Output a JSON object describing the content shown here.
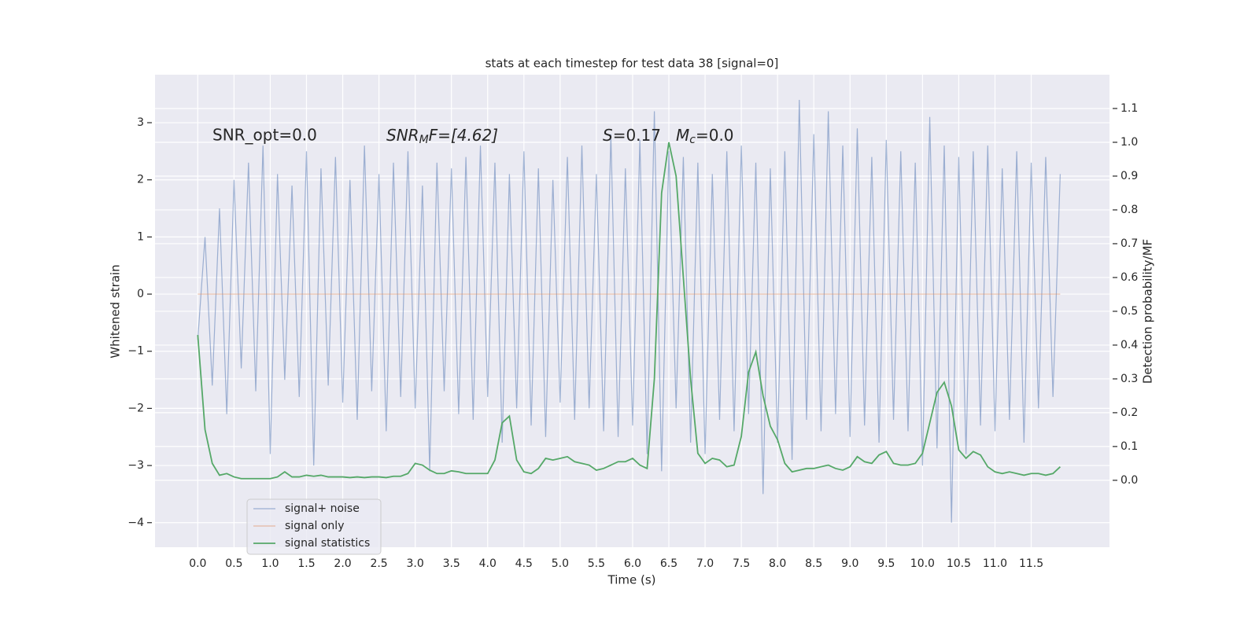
{
  "chart_data": {
    "type": "line",
    "title": "stats at each timestep for test data 38 [signal=0]",
    "xlabel": "Time (s)",
    "ylabel": "Whitened strain",
    "y2label": "Detection probability/MF",
    "annotations": [
      {
        "text": "SNR_opt=0.0"
      },
      {
        "base": "SNR",
        "sub": "M",
        "rest": "F=[4.62]"
      },
      {
        "base": "S",
        "rest": "=0.17"
      },
      {
        "base": "M",
        "sub": "c",
        "rest": "=0.0"
      }
    ],
    "xlim": [
      -0.59,
      12.58
    ],
    "ylim": [
      -4.43,
      3.84
    ],
    "y2lim": [
      -0.198,
      1.2
    ],
    "xticks": [
      {
        "value": 0,
        "label": "0.0"
      },
      0.5,
      {
        "value": 1,
        "label": "1.0"
      },
      1.5,
      {
        "value": 2,
        "label": "2.0"
      },
      2.5,
      {
        "value": 3,
        "label": "3.0"
      },
      3.5,
      {
        "value": 4,
        "label": "4.0"
      },
      4.5,
      {
        "value": 5,
        "label": "5.0"
      },
      5.5,
      {
        "value": 6,
        "label": "6.0"
      },
      6.5,
      {
        "value": 7,
        "label": "7.0"
      },
      7.5,
      {
        "value": 8,
        "label": "8.0"
      },
      8.5,
      {
        "value": 9,
        "label": "9.0"
      },
      9.5,
      {
        "value": 10,
        "label": "10.0"
      },
      10.5,
      {
        "value": 11,
        "label": "11.0"
      },
      11.5
    ],
    "yticks": [
      {
        "value": -4,
        "label": "−4"
      },
      {
        "value": -3,
        "label": "−3"
      },
      {
        "value": -2,
        "label": "−2"
      },
      {
        "value": -1,
        "label": "−1"
      },
      0,
      1,
      2,
      3
    ],
    "y2ticks": [
      {
        "value": 0,
        "label": "0.0"
      },
      0.1,
      0.2,
      0.3,
      0.4,
      0.5,
      0.6,
      0.7,
      0.8,
      0.9,
      {
        "value": 1,
        "label": "1.0"
      },
      1.1
    ],
    "grid": true,
    "legend": "lower left",
    "x": [
      0.0,
      0.1,
      0.2,
      0.3,
      0.4,
      0.5,
      0.6,
      0.7,
      0.8,
      0.9,
      1.0,
      1.1,
      1.2,
      1.3,
      1.4,
      1.5,
      1.6,
      1.7,
      1.8,
      1.9,
      2.0,
      2.1,
      2.2,
      2.3,
      2.4,
      2.5,
      2.6,
      2.7,
      2.8,
      2.9,
      3.0,
      3.1,
      3.2,
      3.3,
      3.4,
      3.5,
      3.6,
      3.7,
      3.8,
      3.9,
      4.0,
      4.1,
      4.2,
      4.3,
      4.4,
      4.5,
      4.6,
      4.7,
      4.8,
      4.9,
      5.0,
      5.1,
      5.2,
      5.3,
      5.4,
      5.5,
      5.6,
      5.7,
      5.8,
      5.9,
      6.0,
      6.1,
      6.2,
      6.3,
      6.4,
      6.5,
      6.6,
      6.7,
      6.8,
      6.9,
      7.0,
      7.1,
      7.2,
      7.3,
      7.4,
      7.5,
      7.6,
      7.7,
      7.8,
      7.9,
      8.0,
      8.1,
      8.2,
      8.3,
      8.4,
      8.5,
      8.6,
      8.7,
      8.8,
      8.9,
      9.0,
      9.1,
      9.2,
      9.3,
      9.4,
      9.5,
      9.6,
      9.7,
      9.8,
      9.9,
      10.0,
      10.1,
      10.2,
      10.3,
      10.4,
      10.5,
      10.6,
      10.7,
      10.8,
      10.9,
      11.0,
      11.1,
      11.2,
      11.3,
      11.4,
      11.5,
      11.6,
      11.7,
      11.8,
      11.9
    ],
    "series": [
      {
        "name": "signal+ noise",
        "color": "#4c72b0",
        "values": [
          -0.8,
          1.0,
          -1.6,
          1.5,
          -2.1,
          2.0,
          -1.3,
          2.3,
          -1.7,
          2.6,
          -2.8,
          2.1,
          -1.5,
          1.9,
          -1.8,
          2.5,
          -3.0,
          2.2,
          -1.6,
          2.4,
          -1.9,
          2.0,
          -2.2,
          2.6,
          -1.7,
          2.1,
          -2.4,
          2.3,
          -1.8,
          2.5,
          -2.0,
          1.9,
          -3.1,
          2.3,
          -1.7,
          2.2,
          -2.1,
          2.4,
          -2.2,
          2.6,
          -1.8,
          2.3,
          -2.6,
          2.1,
          -2.0,
          2.5,
          -2.3,
          2.2,
          -2.5,
          2.0,
          -1.9,
          2.4,
          -2.2,
          2.6,
          -2.0,
          2.1,
          -2.4,
          2.8,
          -2.5,
          2.2,
          -2.3,
          2.7,
          -2.8,
          3.2,
          -3.1,
          2.5,
          -2.0,
          2.4,
          -2.6,
          2.3,
          -2.8,
          2.1,
          -2.2,
          2.5,
          -2.4,
          2.6,
          -2.1,
          2.3,
          -3.5,
          2.2,
          -2.6,
          2.5,
          -2.9,
          3.4,
          -2.2,
          2.8,
          -2.4,
          3.2,
          -2.1,
          2.6,
          -2.5,
          2.9,
          -2.3,
          2.4,
          -2.6,
          2.7,
          -2.2,
          2.5,
          -2.4,
          2.3,
          -3.0,
          3.1,
          -2.7,
          2.6,
          -4.0,
          2.4,
          -2.8,
          2.5,
          -2.3,
          2.6,
          -2.4,
          2.2,
          -2.2,
          2.5,
          -2.6,
          2.3,
          -2.0,
          2.4,
          -1.8,
          2.1
        ]
      },
      {
        "name": "signal only",
        "color": "#dd8452",
        "values": [
          0,
          0,
          0,
          0,
          0,
          0,
          0,
          0,
          0,
          0,
          0,
          0,
          0,
          0,
          0,
          0,
          0,
          0,
          0,
          0,
          0,
          0,
          0,
          0,
          0,
          0,
          0,
          0,
          0,
          0,
          0,
          0,
          0,
          0,
          0,
          0,
          0,
          0,
          0,
          0,
          0,
          0,
          0,
          0,
          0,
          0,
          0,
          0,
          0,
          0,
          0,
          0,
          0,
          0,
          0,
          0,
          0,
          0,
          0,
          0,
          0,
          0,
          0,
          0,
          0,
          0,
          0,
          0,
          0,
          0,
          0,
          0,
          0,
          0,
          0,
          0,
          0,
          0,
          0,
          0,
          0,
          0,
          0,
          0,
          0,
          0,
          0,
          0,
          0,
          0,
          0,
          0,
          0,
          0,
          0,
          0,
          0,
          0,
          0,
          0,
          0,
          0,
          0,
          0,
          0,
          0,
          0,
          0,
          0,
          0,
          0,
          0,
          0,
          0,
          0,
          0,
          0,
          0,
          0,
          0
        ]
      },
      {
        "name": "signal statistics",
        "color": "#55a868",
        "axis": "y2",
        "values": [
          0.43,
          0.15,
          0.05,
          0.015,
          0.02,
          0.01,
          0.005,
          0.005,
          0.005,
          0.005,
          0.005,
          0.01,
          0.025,
          0.01,
          0.01,
          0.015,
          0.012,
          0.015,
          0.01,
          0.01,
          0.01,
          0.008,
          0.01,
          0.008,
          0.01,
          0.01,
          0.008,
          0.012,
          0.012,
          0.02,
          0.05,
          0.045,
          0.03,
          0.02,
          0.02,
          0.028,
          0.025,
          0.02,
          0.02,
          0.02,
          0.02,
          0.06,
          0.17,
          0.19,
          0.06,
          0.025,
          0.02,
          0.035,
          0.065,
          0.06,
          0.065,
          0.07,
          0.055,
          0.05,
          0.045,
          0.03,
          0.035,
          0.045,
          0.055,
          0.055,
          0.065,
          0.045,
          0.035,
          0.3,
          0.85,
          1.0,
          0.9,
          0.6,
          0.3,
          0.08,
          0.05,
          0.065,
          0.06,
          0.04,
          0.045,
          0.13,
          0.32,
          0.38,
          0.25,
          0.16,
          0.12,
          0.05,
          0.025,
          0.03,
          0.035,
          0.035,
          0.04,
          0.045,
          0.035,
          0.03,
          0.04,
          0.07,
          0.055,
          0.05,
          0.075,
          0.085,
          0.05,
          0.045,
          0.045,
          0.05,
          0.08,
          0.17,
          0.26,
          0.29,
          0.22,
          0.09,
          0.065,
          0.085,
          0.075,
          0.04,
          0.025,
          0.02,
          0.025,
          0.02,
          0.015,
          0.02,
          0.02,
          0.015,
          0.02,
          0.04
        ]
      }
    ]
  }
}
